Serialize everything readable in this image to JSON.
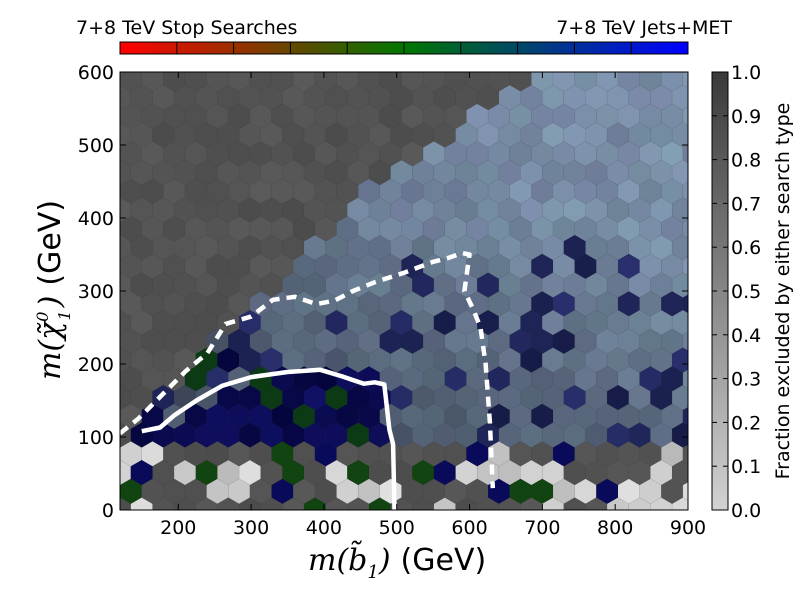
{
  "chart_data": {
    "type": "heatmap",
    "subtype": "hexbin",
    "xlabel_math": "m(b̃",
    "xlabel_sub": "1",
    "xlabel_close": ")",
    "xlabel_unit": "(GeV)",
    "ylabel_math": "m(χ̃",
    "ylabel_sup": "0",
    "ylabel_sub": "1",
    "ylabel_close": ")",
    "ylabel_unit": "(GeV)",
    "xlim": [
      120,
      900
    ],
    "ylim": [
      0,
      600
    ],
    "x_ticks": [
      200,
      300,
      400,
      500,
      600,
      700,
      800,
      900
    ],
    "y_ticks": [
      0,
      100,
      200,
      300,
      400,
      500,
      600
    ],
    "hue_colorbar": {
      "left_label": "7+8 TeV Stop Searches",
      "right_label": "7+8 TeV Jets+MET",
      "colors": [
        "#ff0000",
        "#007700",
        "#0000ff"
      ]
    },
    "fraction_colorbar": {
      "label": "Fraction excluded by either search type",
      "ticks": [
        0.0,
        0.1,
        0.2,
        0.3,
        0.4,
        0.5,
        0.6,
        0.7,
        0.8,
        0.9,
        1.0
      ],
      "tick_labels": [
        "0.0",
        "0.1",
        "0.2",
        "0.3",
        "0.4",
        "0.5",
        "0.6",
        "0.7",
        "0.8",
        "0.9",
        "1.0"
      ],
      "range": [
        0,
        1
      ]
    },
    "excluded_region_color": "#555555",
    "contours": [
      {
        "name": "solid-contour",
        "style": "solid",
        "color": "#ffffff",
        "points": [
          [
            150,
            108
          ],
          [
            175,
            113
          ],
          [
            195,
            130
          ],
          [
            225,
            150
          ],
          [
            260,
            170
          ],
          [
            300,
            182
          ],
          [
            350,
            189
          ],
          [
            395,
            192
          ],
          [
            425,
            183
          ],
          [
            455,
            173
          ],
          [
            470,
            175
          ],
          [
            483,
            172
          ],
          [
            490,
            110
          ],
          [
            495,
            90
          ],
          [
            497,
            0
          ]
        ]
      },
      {
        "name": "dashed-contour",
        "style": "dashed",
        "color": "#ffffff",
        "points": [
          [
            120,
            105
          ],
          [
            145,
            125
          ],
          [
            175,
            155
          ],
          [
            210,
            190
          ],
          [
            240,
            215
          ],
          [
            265,
            255
          ],
          [
            300,
            265
          ],
          [
            330,
            288
          ],
          [
            360,
            292
          ],
          [
            390,
            282
          ],
          [
            415,
            287
          ],
          [
            440,
            300
          ],
          [
            470,
            312
          ],
          [
            510,
            325
          ],
          [
            550,
            340
          ],
          [
            570,
            345
          ],
          [
            590,
            352
          ],
          [
            600,
            350
          ],
          [
            593,
            300
          ],
          [
            605,
            275
          ],
          [
            615,
            250
          ],
          [
            622,
            200
          ],
          [
            628,
            120
          ],
          [
            632,
            30
          ]
        ]
      }
    ]
  }
}
